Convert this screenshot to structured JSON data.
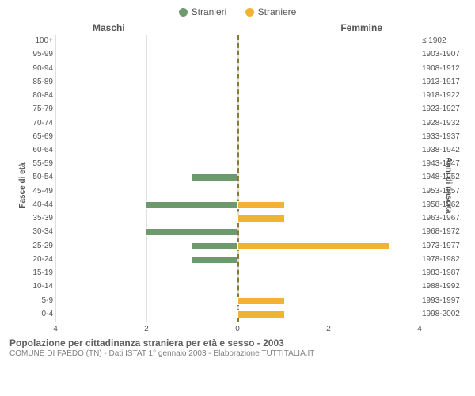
{
  "legend": {
    "male": {
      "label": "Stranieri",
      "color": "#6c9a6c"
    },
    "female": {
      "label": "Straniere",
      "color": "#f2b233"
    }
  },
  "gender_titles": {
    "male": "Maschi",
    "female": "Femmine"
  },
  "axis_titles": {
    "left": "Fasce di età",
    "right": "Anni di nascita"
  },
  "x_axis": {
    "max": 4,
    "ticks_left": [
      4,
      2,
      0
    ],
    "ticks_right": [
      0,
      2,
      4
    ],
    "grid_color": "#e0e0e0",
    "center_color": "#8a7a3a"
  },
  "colors": {
    "background": "#ffffff",
    "text": "#555555",
    "male_bar": "#6c9a6c",
    "female_bar": "#f2b233"
  },
  "rows": [
    {
      "age": "100+",
      "birth": "≤ 1902",
      "m": 0,
      "f": 0
    },
    {
      "age": "95-99",
      "birth": "1903-1907",
      "m": 0,
      "f": 0
    },
    {
      "age": "90-94",
      "birth": "1908-1912",
      "m": 0,
      "f": 0
    },
    {
      "age": "85-89",
      "birth": "1913-1917",
      "m": 0,
      "f": 0
    },
    {
      "age": "80-84",
      "birth": "1918-1922",
      "m": 0,
      "f": 0
    },
    {
      "age": "75-79",
      "birth": "1923-1927",
      "m": 0,
      "f": 0
    },
    {
      "age": "70-74",
      "birth": "1928-1932",
      "m": 0,
      "f": 0
    },
    {
      "age": "65-69",
      "birth": "1933-1937",
      "m": 0,
      "f": 0
    },
    {
      "age": "60-64",
      "birth": "1938-1942",
      "m": 0,
      "f": 0
    },
    {
      "age": "55-59",
      "birth": "1943-1947",
      "m": 0,
      "f": 0
    },
    {
      "age": "50-54",
      "birth": "1948-1952",
      "m": 1,
      "f": 0
    },
    {
      "age": "45-49",
      "birth": "1953-1957",
      "m": 0,
      "f": 0
    },
    {
      "age": "40-44",
      "birth": "1958-1962",
      "m": 2,
      "f": 1
    },
    {
      "age": "35-39",
      "birth": "1963-1967",
      "m": 0,
      "f": 1
    },
    {
      "age": "30-34",
      "birth": "1968-1972",
      "m": 2,
      "f": 0
    },
    {
      "age": "25-29",
      "birth": "1973-1977",
      "m": 1,
      "f": 3.3
    },
    {
      "age": "20-24",
      "birth": "1978-1982",
      "m": 1,
      "f": 0
    },
    {
      "age": "15-19",
      "birth": "1983-1987",
      "m": 0,
      "f": 0
    },
    {
      "age": "10-14",
      "birth": "1988-1992",
      "m": 0,
      "f": 0
    },
    {
      "age": "5-9",
      "birth": "1993-1997",
      "m": 0,
      "f": 1
    },
    {
      "age": "0-4",
      "birth": "1998-2002",
      "m": 0,
      "f": 1
    }
  ],
  "footer": {
    "title": "Popolazione per cittadinanza straniera per età e sesso - 2003",
    "subtitle": "COMUNE DI FAEDO (TN) - Dati ISTAT 1° gennaio 2003 - Elaborazione TUTTITALIA.IT"
  },
  "chart_type": "population-pyramid"
}
